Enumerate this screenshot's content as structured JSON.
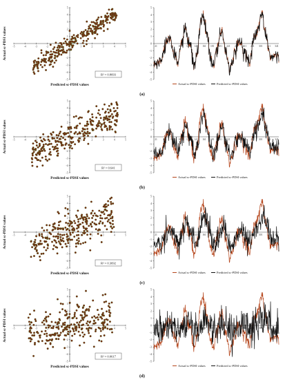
{
  "chart_data": [
    {
      "panel": "(a)",
      "scatter": {
        "type": "scatter",
        "xlabel": "Predicted sc-PDSI values",
        "ylabel": "Actual sc-PDSI values",
        "xlim": [
          -5,
          5
        ],
        "ylim": [
          -5,
          5
        ],
        "xticks": [
          "-5",
          "-4",
          "-3",
          "-2",
          "-1",
          "0",
          "1",
          "2",
          "3",
          "4",
          "5"
        ],
        "yticks": [
          "5",
          "4",
          "3",
          "2",
          "1",
          "-1",
          "-2",
          "-3",
          "-4",
          "-5"
        ],
        "r2_label": "R² = 0.8693",
        "relation": {
          "slope": 1.0,
          "intercept": 0.0,
          "noise": 0.55,
          "x_range": [
            -3.3,
            4.2
          ]
        }
      },
      "line": {
        "type": "line",
        "ylim": [
          -5,
          5
        ],
        "yticks": [
          "5",
          "4",
          "3",
          "2",
          "1",
          "0",
          "-1",
          "-2",
          "-3",
          "-4",
          "-5"
        ],
        "xticks": [
          "21",
          "41",
          "81",
          "101",
          "121",
          "141",
          "161",
          "181",
          "201",
          "221",
          "241",
          "261",
          "281",
          "301",
          "321",
          "341"
        ],
        "series": [
          {
            "name": "Actual sc-PDSI values",
            "color": "#b5451b"
          },
          {
            "name": "Predicted sc-PDSI values",
            "color": "#111111"
          }
        ],
        "prediction_quality": {
          "lag": 0,
          "noise": 0.25,
          "damp": 1.0
        }
      }
    },
    {
      "panel": "(b)",
      "scatter": {
        "type": "scatter",
        "xlabel": "Predicted sc-PDSI values",
        "ylabel": "Actual sc-PDSI values",
        "xlim": [
          -5,
          5
        ],
        "ylim": [
          -5,
          5
        ],
        "xticks": [
          "-5",
          "-4",
          "-3",
          "-2",
          "-1",
          "0",
          "1",
          "2",
          "3",
          "4",
          "5"
        ],
        "yticks": [
          "5",
          "4",
          "3",
          "2",
          "1",
          "-1",
          "-2",
          "-3",
          "-4",
          "-5"
        ],
        "r2_label": "R² = 0.641",
        "relation": {
          "slope": 0.8,
          "intercept": 0.0,
          "noise": 0.95,
          "x_range": [
            -3.4,
            4.3
          ]
        }
      },
      "line": {
        "type": "line",
        "ylim": [
          -5,
          5
        ],
        "yticks": [
          "5",
          "4",
          "3",
          "2",
          "1",
          "0",
          "-1",
          "-2",
          "-3",
          "-4",
          "-5"
        ],
        "xticks": [
          "21",
          "41",
          "81",
          "101",
          "121",
          "141",
          "161",
          "181",
          "201",
          "221",
          "241",
          "261",
          "281",
          "301",
          "321",
          "341"
        ],
        "series": [
          {
            "name": "Actual sc-PDSI values",
            "color": "#b5451b"
          },
          {
            "name": "Predicted sc-PDSI values",
            "color": "#111111"
          }
        ],
        "prediction_quality": {
          "lag": 2,
          "noise": 0.5,
          "damp": 0.8
        }
      }
    },
    {
      "panel": "(c)",
      "scatter": {
        "type": "scatter",
        "xlabel": "Predicted sc-PDSI values",
        "ylabel": "Actual sc-PDSI values",
        "xlim": [
          -5,
          5
        ],
        "ylim": [
          -5,
          5
        ],
        "xticks": [
          "-5",
          "-4",
          "-3",
          "-2",
          "-1",
          "0",
          "1",
          "2",
          "3",
          "4",
          "5"
        ],
        "yticks": [
          "5",
          "4",
          "3",
          "2",
          "1",
          "-1",
          "-2",
          "-3",
          "-4",
          "-5"
        ],
        "r2_label": "R² = 0.3692",
        "relation": {
          "slope": 0.6,
          "intercept": 0.0,
          "noise": 1.3,
          "x_range": [
            -3.5,
            4.0
          ]
        }
      },
      "line": {
        "type": "line",
        "ylim": [
          -5,
          5
        ],
        "yticks": [
          "5",
          "4",
          "3",
          "2",
          "1",
          "0",
          "-1",
          "-2",
          "-3",
          "-4",
          "-5"
        ],
        "xticks": [
          "21",
          "41",
          "81",
          "101",
          "121",
          "141",
          "161",
          "181",
          "201",
          "221",
          "241",
          "261",
          "281",
          "301",
          "321",
          "341"
        ],
        "series": [
          {
            "name": "Actual sc-PDSI values",
            "color": "#b5451b"
          },
          {
            "name": "Predicted sc-PDSI values",
            "color": "#111111"
          }
        ],
        "prediction_quality": {
          "lag": 4,
          "noise": 0.8,
          "damp": 0.6
        }
      }
    },
    {
      "panel": "(d)",
      "scatter": {
        "type": "scatter",
        "xlabel": "Predicted sc-PDSI values",
        "ylabel": "Actual sc-PDSI values",
        "xlim": [
          -5,
          5
        ],
        "ylim": [
          -5,
          5
        ],
        "xticks": [
          "-5",
          "-4",
          "-3",
          "-2",
          "-1",
          "0",
          "1",
          "2",
          "3",
          "4",
          "5"
        ],
        "yticks": [
          "5",
          "4",
          "3",
          "2",
          "1",
          "-1",
          "-2",
          "-3",
          "-4",
          "-5"
        ],
        "r2_label": "R² = 0.0617",
        "relation": {
          "slope": 0.2,
          "intercept": 0.0,
          "noise": 1.4,
          "x_range": [
            -3.7,
            3.8
          ]
        }
      },
      "line": {
        "type": "line",
        "ylim": [
          -5,
          5
        ],
        "yticks": [
          "5",
          "4",
          "3",
          "2",
          "1",
          "0",
          "-1",
          "-2",
          "-3",
          "-4",
          "-5"
        ],
        "xticks": [
          "21",
          "41",
          "81",
          "101",
          "121",
          "141",
          "161",
          "181",
          "201",
          "221",
          "241",
          "261",
          "281",
          "301",
          "321",
          "341"
        ],
        "series": [
          {
            "name": "Actual sc-PDSI values",
            "color": "#b5451b"
          },
          {
            "name": "Predicted sc-PDSI values",
            "color": "#111111"
          }
        ],
        "prediction_quality": {
          "lag": 8,
          "noise": 1.1,
          "damp": 0.25
        }
      }
    }
  ],
  "colors": {
    "scatter_fill": "#7a1f12",
    "scatter_stroke": "#4a7a22",
    "actual": "#b5451b",
    "predicted": "#111111",
    "axis": "#444444",
    "highlight": "#f4d6f4"
  }
}
